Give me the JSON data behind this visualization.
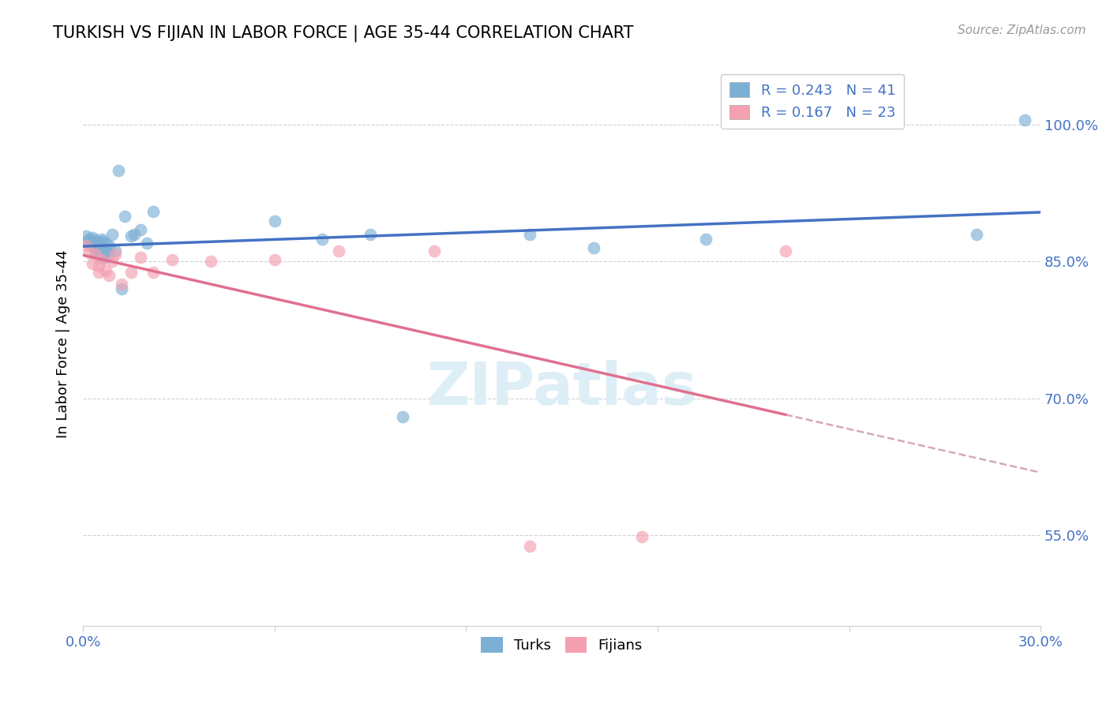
{
  "title": "TURKISH VS FIJIAN IN LABOR FORCE | AGE 35-44 CORRELATION CHART",
  "source": "Source: ZipAtlas.com",
  "ylabel": "In Labor Force | Age 35-44",
  "xlim": [
    0.0,
    0.3
  ],
  "ylim": [
    0.45,
    1.07
  ],
  "yticks": [
    0.55,
    0.7,
    0.85,
    1.0
  ],
  "ytick_labels": [
    "55.0%",
    "70.0%",
    "85.0%",
    "100.0%"
  ],
  "turks_x": [
    0.001,
    0.001,
    0.002,
    0.002,
    0.003,
    0.003,
    0.003,
    0.004,
    0.004,
    0.004,
    0.005,
    0.005,
    0.005,
    0.006,
    0.006,
    0.006,
    0.006,
    0.007,
    0.007,
    0.007,
    0.008,
    0.008,
    0.009,
    0.01,
    0.011,
    0.012,
    0.013,
    0.015,
    0.016,
    0.018,
    0.02,
    0.022,
    0.06,
    0.075,
    0.09,
    0.1,
    0.14,
    0.16,
    0.195,
    0.28,
    0.295
  ],
  "turks_y": [
    0.878,
    0.872,
    0.875,
    0.87,
    0.876,
    0.872,
    0.868,
    0.874,
    0.865,
    0.86,
    0.87,
    0.865,
    0.858,
    0.875,
    0.872,
    0.862,
    0.855,
    0.87,
    0.862,
    0.855,
    0.868,
    0.858,
    0.88,
    0.862,
    0.95,
    0.82,
    0.9,
    0.878,
    0.88,
    0.885,
    0.87,
    0.905,
    0.895,
    0.875,
    0.88,
    0.68,
    0.88,
    0.865,
    0.875,
    0.88,
    1.005
  ],
  "fijians_x": [
    0.001,
    0.002,
    0.003,
    0.004,
    0.005,
    0.005,
    0.006,
    0.007,
    0.008,
    0.009,
    0.01,
    0.012,
    0.015,
    0.018,
    0.022,
    0.028,
    0.04,
    0.06,
    0.08,
    0.11,
    0.14,
    0.175,
    0.22
  ],
  "fijians_y": [
    0.868,
    0.86,
    0.848,
    0.858,
    0.845,
    0.838,
    0.852,
    0.84,
    0.835,
    0.85,
    0.858,
    0.825,
    0.838,
    0.855,
    0.838,
    0.852,
    0.85,
    0.852,
    0.862,
    0.862,
    0.538,
    0.548,
    0.862
  ],
  "turks_color": "#7bafd4",
  "fijians_color": "#f4a0b0",
  "turk_line_color": "#4472c4",
  "fijian_line_color": "#e07090",
  "dashed_line_color": "#d4aab0",
  "watermark_color": "#ddeef6",
  "grid_color": "#cccccc",
  "axis_label_color": "#4472c4",
  "title_fontsize": 15,
  "axis_fontsize": 13,
  "source_fontsize": 11
}
